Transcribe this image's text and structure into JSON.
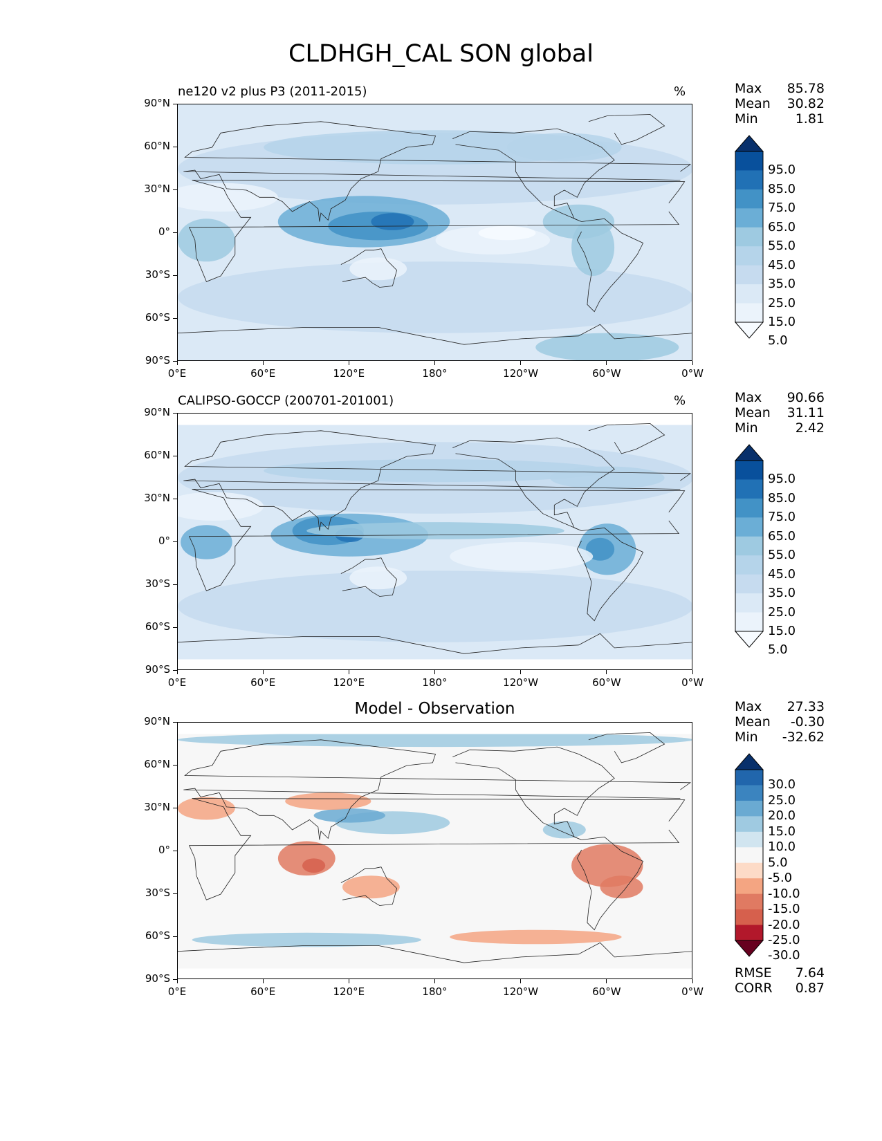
{
  "title": "CLDHGH_CAL SON global",
  "panels": [
    {
      "id": "model",
      "title_left": "ne120 v2 plus P3 (2011-2015)",
      "title_right": "%",
      "title_center": "",
      "stats": [
        {
          "name": "Max",
          "value": "85.78"
        },
        {
          "name": "Mean",
          "value": "30.82"
        },
        {
          "name": "Min",
          "value": "1.81"
        }
      ],
      "colorbar": {
        "labels": [
          "95.0",
          "85.0",
          "75.0",
          "65.0",
          "55.0",
          "45.0",
          "35.0",
          "25.0",
          "15.0",
          "5.0"
        ],
        "colors": [
          "#08306b",
          "#08509c",
          "#2171b5",
          "#4292c6",
          "#6baed6",
          "#9ecae1",
          "#b5d4ea",
          "#c6dbef",
          "#dbe9f6",
          "#ebf3fb",
          "#f7fbff"
        ]
      },
      "metrics": []
    },
    {
      "id": "obs",
      "title_left": "CALIPSO-GOCCP (200701-201001)",
      "title_right": "%",
      "title_center": "",
      "stats": [
        {
          "name": "Max",
          "value": "90.66"
        },
        {
          "name": "Mean",
          "value": "31.11"
        },
        {
          "name": "Min",
          "value": "2.42"
        }
      ],
      "colorbar": {
        "labels": [
          "95.0",
          "85.0",
          "75.0",
          "65.0",
          "55.0",
          "45.0",
          "35.0",
          "25.0",
          "15.0",
          "5.0"
        ],
        "colors": [
          "#08306b",
          "#08509c",
          "#2171b5",
          "#4292c6",
          "#6baed6",
          "#9ecae1",
          "#b5d4ea",
          "#c6dbef",
          "#dbe9f6",
          "#ebf3fb",
          "#f7fbff"
        ]
      },
      "metrics": []
    },
    {
      "id": "diff",
      "title_left": "",
      "title_right": "",
      "title_center": "Model - Observation",
      "stats": [
        {
          "name": "Max",
          "value": "27.33"
        },
        {
          "name": "Mean",
          "value": "-0.30"
        },
        {
          "name": "Min",
          "value": "-32.62"
        }
      ],
      "colorbar": {
        "labels": [
          "30.0",
          "25.0",
          "20.0",
          "15.0",
          "10.0",
          "5.0",
          "-5.0",
          "-10.0",
          "-15.0",
          "-20.0",
          "-25.0",
          "-30.0"
        ],
        "colors": [
          "#08306b",
          "#2166ac",
          "#3b84bf",
          "#6aaad2",
          "#9fcae1",
          "#d1e5f0",
          "#f7f7f7",
          "#fddbc7",
          "#f4a582",
          "#e07a62",
          "#d6604d",
          "#b2182b",
          "#67001f"
        ]
      },
      "metrics": [
        {
          "name": "RMSE",
          "value": "7.64"
        },
        {
          "name": "CORR",
          "value": "0.87"
        }
      ]
    }
  ],
  "axes": {
    "y_ticks": [
      "90°N",
      "60°N",
      "30°N",
      "0°",
      "30°S",
      "60°S",
      "90°S"
    ],
    "x_ticks": [
      "0°E",
      "60°E",
      "120°E",
      "180°",
      "120°W",
      "60°W",
      "0°W"
    ]
  },
  "chart_data": [
    {
      "type": "heatmap",
      "title": "ne120 v2 plus P3 (2011-2015)",
      "units": "%",
      "x_range": [
        0,
        360
      ],
      "y_range": [
        -90,
        90
      ],
      "max": 85.78,
      "mean": 30.82,
      "min": 1.81,
      "levels": [
        5,
        15,
        25,
        35,
        45,
        55,
        65,
        75,
        85,
        95
      ],
      "colormap": "Blues"
    },
    {
      "type": "heatmap",
      "title": "CALIPSO-GOCCP (200701-201001)",
      "units": "%",
      "x_range": [
        0,
        360
      ],
      "y_range": [
        -90,
        90
      ],
      "max": 90.66,
      "mean": 31.11,
      "min": 2.42,
      "levels": [
        5,
        15,
        25,
        35,
        45,
        55,
        65,
        75,
        85,
        95
      ],
      "colormap": "Blues"
    },
    {
      "type": "heatmap",
      "title": "Model - Observation",
      "x_range": [
        0,
        360
      ],
      "y_range": [
        -90,
        90
      ],
      "max": 27.33,
      "mean": -0.3,
      "min": -32.62,
      "rmse": 7.64,
      "corr": 0.87,
      "levels": [
        -30,
        -25,
        -20,
        -15,
        -10,
        -5,
        5,
        10,
        15,
        20,
        25,
        30
      ],
      "colormap": "RdBu_r"
    }
  ]
}
